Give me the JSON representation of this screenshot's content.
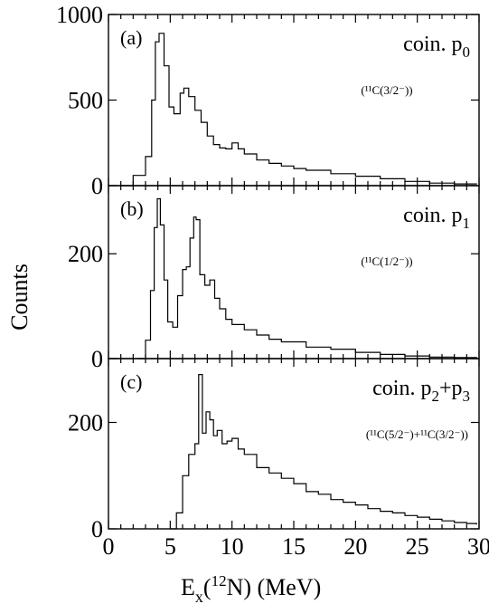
{
  "chart_data": {
    "type": "histogram",
    "ylabel": "Counts",
    "xlabel_parts": {
      "E": "E",
      "x": "x",
      "open": "(",
      "mass": "12",
      "N": "N)  (MeV)"
    },
    "xlim": [
      0,
      30
    ],
    "x_ticks": [
      0,
      5,
      10,
      15,
      20,
      25,
      30
    ],
    "x_tick_labels": [
      "0",
      "5",
      "10",
      "15",
      "20",
      "25",
      "30"
    ],
    "panels": [
      {
        "tag": "(a)",
        "label_main": "coin. p",
        "label_sub": "0",
        "state_text": "(¹¹C(3/2⁻))",
        "ylim": [
          0,
          1000
        ],
        "y_ticks": [
          0,
          500,
          1000
        ],
        "y_tick_labels": [
          "0",
          "500",
          "1000"
        ],
        "x": [
          1.0,
          2.0,
          3.0,
          3.5,
          3.8,
          4.1,
          4.5,
          4.9,
          5.3,
          5.8,
          6.1,
          6.5,
          7.0,
          7.5,
          8.0,
          8.5,
          9.0,
          9.5,
          10.0,
          10.5,
          11.0,
          12.0,
          13.0,
          14.0,
          15.0,
          16.0,
          18.0,
          20.0,
          22.0,
          24.0,
          26.0,
          28.0,
          29.8
        ],
        "y": [
          0,
          60,
          170,
          500,
          840,
          890,
          700,
          460,
          420,
          540,
          570,
          520,
          440,
          370,
          290,
          240,
          220,
          215,
          250,
          215,
          185,
          150,
          130,
          115,
          100,
          90,
          70,
          55,
          40,
          25,
          15,
          10,
          8
        ]
      },
      {
        "tag": "(b)",
        "label_main": "coin. p",
        "label_sub": "1",
        "state_text": "(¹¹C(1/2⁻))",
        "ylim": [
          0,
          330
        ],
        "y_ticks": [
          0,
          200
        ],
        "y_tick_labels": [
          "0",
          "200"
        ],
        "x": [
          2.5,
          3.0,
          3.4,
          3.7,
          3.95,
          4.2,
          4.5,
          4.8,
          5.2,
          5.6,
          6.0,
          6.3,
          6.6,
          6.9,
          7.1,
          7.4,
          7.8,
          8.2,
          8.6,
          9.0,
          9.5,
          10.0,
          11.0,
          12.0,
          13.0,
          14.0,
          16.0,
          18.0,
          20.0,
          22.0,
          24.0,
          26.0,
          28.0,
          29.8
        ],
        "y": [
          0,
          35,
          130,
          250,
          305,
          255,
          150,
          70,
          60,
          120,
          170,
          175,
          230,
          270,
          265,
          160,
          140,
          150,
          115,
          95,
          75,
          65,
          55,
          45,
          37,
          32,
          22,
          18,
          12,
          8,
          5,
          3,
          2,
          1
        ]
      },
      {
        "tag": "(c)",
        "label_main": "coin. p",
        "label_sub": "2",
        "label_mid": "+p",
        "label_sub2": "3",
        "state_text": "(¹¹C(5/2⁻)+¹¹C(3/2⁻))",
        "ylim": [
          0,
          320
        ],
        "y_ticks": [
          0,
          200
        ],
        "y_tick_labels": [
          "0",
          "200"
        ],
        "x": [
          5.0,
          5.5,
          6.0,
          6.5,
          7.0,
          7.3,
          7.6,
          7.9,
          8.2,
          8.5,
          8.8,
          9.2,
          9.6,
          10.0,
          10.5,
          11.0,
          12.0,
          13.0,
          14.0,
          15.0,
          16.0,
          17.0,
          18.0,
          19.0,
          20.0,
          21.0,
          22.0,
          23.0,
          24.0,
          25.0,
          26.0,
          27.0,
          28.0,
          29.0,
          29.8
        ],
        "y": [
          0,
          30,
          100,
          140,
          160,
          290,
          180,
          220,
          205,
          175,
          185,
          160,
          165,
          170,
          150,
          140,
          115,
          105,
          95,
          85,
          70,
          65,
          55,
          50,
          45,
          38,
          33,
          30,
          25,
          22,
          18,
          15,
          12,
          10,
          8
        ]
      }
    ]
  }
}
